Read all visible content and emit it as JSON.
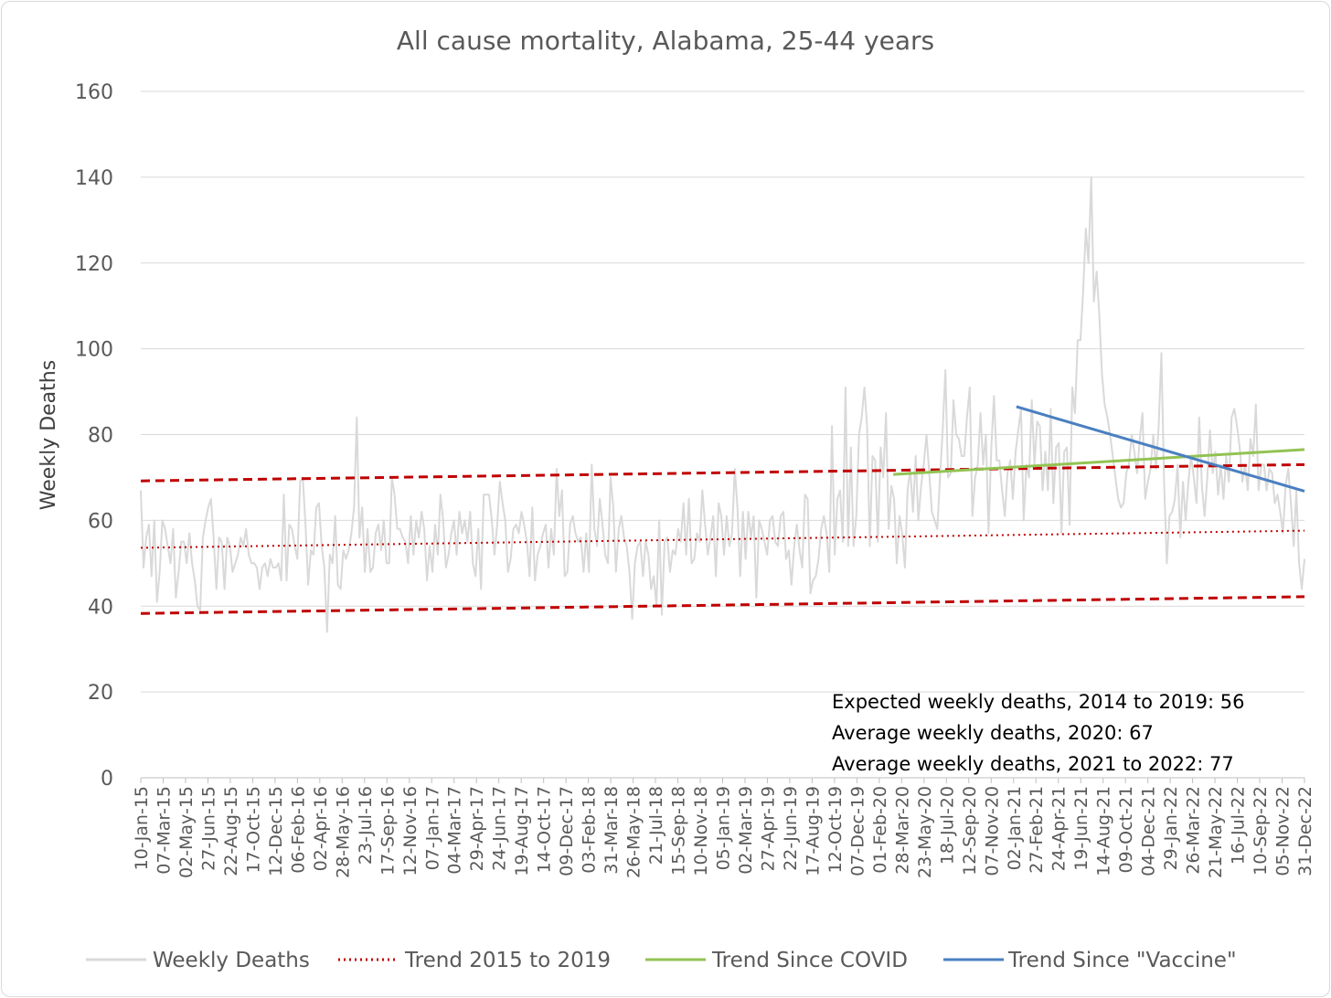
{
  "chart_data": {
    "type": "line",
    "title": "All cause mortality, Alabama, 25-44 years",
    "ylabel": "Weekly Deaths",
    "xlabel": "",
    "ylim": [
      0,
      160
    ],
    "yticks": [
      0,
      20,
      40,
      60,
      80,
      100,
      120,
      140,
      160
    ],
    "x_range": [
      "10-Jan-15",
      "31-Dec-22"
    ],
    "xticks": [
      "10-Jan-15",
      "07-Mar-15",
      "02-May-15",
      "27-Jun-15",
      "22-Aug-15",
      "17-Oct-15",
      "12-Dec-15",
      "06-Feb-16",
      "02-Apr-16",
      "28-May-16",
      "23-Jul-16",
      "17-Sep-16",
      "12-Nov-16",
      "07-Jan-17",
      "04-Mar-17",
      "29-Apr-17",
      "24-Jun-17",
      "19-Aug-17",
      "14-Oct-17",
      "09-Dec-17",
      "03-Feb-18",
      "31-Mar-18",
      "26-May-18",
      "21-Jul-18",
      "15-Sep-18",
      "10-Nov-18",
      "05-Jan-19",
      "02-Mar-19",
      "27-Apr-19",
      "22-Jun-19",
      "17-Aug-19",
      "12-Oct-19",
      "07-Dec-19",
      "01-Feb-20",
      "28-Mar-20",
      "23-May-20",
      "18-Jul-20",
      "12-Sep-20",
      "07-Nov-20",
      "02-Jan-21",
      "27-Feb-21",
      "24-Apr-21",
      "19-Jun-21",
      "14-Aug-21",
      "09-Oct-21",
      "04-Dec-21",
      "29-Jan-22",
      "26-Mar-22",
      "21-May-22",
      "16-Jul-22",
      "10-Sep-22",
      "05-Nov-22",
      "31-Dec-22"
    ],
    "grid": "horizontal",
    "legend_position": "bottom",
    "colors": {
      "weekly": "#d9d9d9",
      "trend_2015_2019": "#c00000",
      "trend_covid": "#92c353",
      "trend_vaccine": "#4a7fc1",
      "grid": "#d9d9d9",
      "axis": "#bfbfbf"
    },
    "series": [
      {
        "name": "Weekly Deaths",
        "values": [
          67,
          49,
          56,
          59,
          47,
          60,
          41,
          48,
          60,
          58,
          54,
          50,
          58,
          42,
          48,
          55,
          55,
          50,
          57,
          50,
          46,
          40,
          39,
          56,
          60,
          63,
          65,
          56,
          44,
          56,
          55,
          44,
          56,
          54,
          48,
          50,
          52,
          56,
          54,
          58,
          52,
          50,
          50,
          49,
          44,
          49,
          50,
          47,
          51,
          49,
          49,
          50,
          46,
          66,
          46,
          59,
          58,
          54,
          51,
          69,
          70,
          59,
          45,
          53,
          52,
          63,
          64,
          54,
          49,
          34,
          52,
          50,
          61,
          45,
          44,
          53,
          51,
          53,
          57,
          63,
          84,
          56,
          63,
          48,
          58,
          48,
          49,
          57,
          59,
          53,
          60,
          50,
          50,
          70,
          66,
          58,
          58,
          56,
          55,
          50,
          61,
          52,
          60,
          56,
          62,
          58,
          46,
          54,
          48,
          59,
          52,
          66,
          60,
          49,
          52,
          57,
          60,
          52,
          62,
          57,
          60,
          55,
          62,
          50,
          47,
          58,
          44,
          66,
          66,
          66,
          60,
          52,
          59,
          69,
          64,
          60,
          48,
          51,
          58,
          59,
          57,
          62,
          59,
          55,
          47,
          63,
          46,
          52,
          54,
          57,
          59,
          49,
          58,
          52,
          72,
          61,
          67,
          47,
          48,
          59,
          61,
          57,
          55,
          56,
          48,
          57,
          48,
          73,
          58,
          54,
          65,
          59,
          52,
          50,
          70,
          63,
          48,
          58,
          61,
          56,
          54,
          48,
          37,
          50,
          54,
          55,
          47,
          55,
          52,
          44,
          47,
          40,
          60,
          38,
          55,
          56,
          48,
          53,
          52,
          58,
          55,
          64,
          52,
          65,
          50,
          51,
          57,
          55,
          67,
          59,
          52,
          56,
          61,
          47,
          64,
          61,
          52,
          61,
          54,
          57,
          72,
          63,
          47,
          62,
          51,
          62,
          56,
          61,
          42,
          60,
          58,
          55,
          52,
          60,
          61,
          55,
          54,
          61,
          62,
          51,
          53,
          45,
          54,
          59,
          53,
          49,
          66,
          65,
          43,
          46,
          47,
          51,
          58,
          61,
          57,
          48,
          82,
          52,
          65,
          67,
          55,
          91,
          54,
          77,
          54,
          61,
          80,
          84,
          91,
          82,
          54,
          75,
          74,
          55,
          77,
          70,
          85,
          58,
          68,
          65,
          50,
          61,
          57,
          49,
          67,
          72,
          62,
          75,
          60,
          68,
          73,
          80,
          71,
          62,
          60,
          58,
          70,
          81,
          95,
          70,
          71,
          88,
          80,
          79,
          75,
          75,
          84,
          91,
          61,
          70,
          73,
          85,
          73,
          80,
          57,
          77,
          89,
          74,
          74,
          67,
          61,
          71,
          74,
          65,
          76,
          81,
          86,
          60,
          73,
          70,
          88,
          73,
          83,
          82,
          67,
          76,
          67,
          86,
          64,
          77,
          78,
          57,
          76,
          77,
          59,
          91,
          85,
          102,
          102,
          113,
          128,
          120,
          140,
          111,
          118,
          108,
          94,
          87,
          84,
          80,
          75,
          70,
          65,
          63,
          64,
          71,
          73,
          80,
          76,
          71,
          79,
          85,
          65,
          69,
          72,
          80,
          72,
          82,
          99,
          69,
          50,
          61,
          62,
          65,
          73,
          56,
          69,
          60,
          69,
          75,
          70,
          64,
          84,
          68,
          61,
          70,
          81,
          71,
          76,
          66,
          73,
          65,
          75,
          69,
          84,
          86,
          82,
          77,
          69,
          73,
          67,
          79,
          75,
          87,
          67,
          73,
          73,
          67,
          72,
          71,
          64,
          66,
          62,
          57,
          68,
          72,
          64,
          54,
          67,
          50,
          44,
          51
        ]
      },
      {
        "name": "Trend 2015 to 2019",
        "x": [
          "10-Jan-15",
          "31-Dec-22"
        ],
        "values": [
          53.6,
          57.6
        ]
      },
      {
        "name": "Trend 2015 to 2019 (upper)",
        "x": [
          "10-Jan-15",
          "31-Dec-22"
        ],
        "values": [
          69.2,
          73.0
        ]
      },
      {
        "name": "Trend 2015 to 2019 (lower)",
        "x": [
          "10-Jan-15",
          "31-Dec-22"
        ],
        "values": [
          38.3,
          42.2
        ]
      },
      {
        "name": "Trend Since COVID",
        "x": [
          "07-Mar-20",
          "31-Dec-22"
        ],
        "values": [
          70.7,
          76.5
        ]
      },
      {
        "name": "Trend Since \"Vaccine\"",
        "x": [
          "09-Jan-21",
          "31-Dec-22"
        ],
        "values": [
          86.5,
          66.8
        ]
      }
    ],
    "legend": [
      {
        "label": "Weekly Deaths",
        "style": "weekly"
      },
      {
        "label": "Trend 2015 to 2019",
        "style": "trend_2015_2019"
      },
      {
        "label": "Trend Since COVID",
        "style": "trend_covid"
      },
      {
        "label": "Trend Since \"Vaccine\"",
        "style": "trend_vaccine"
      }
    ],
    "annotations": [
      "Expected weekly deaths, 2014 to 2019: 56",
      "Average weekly deaths, 2020: 67",
      "Average weekly deaths, 2021 to 2022: 77"
    ]
  }
}
